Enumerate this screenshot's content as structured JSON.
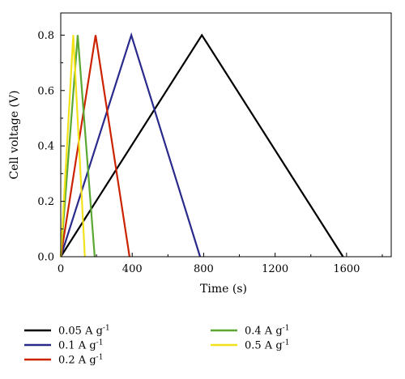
{
  "chart_data": {
    "type": "line",
    "xlabel": "Time (s)",
    "ylabel": "Cell voltage (V)",
    "xlim": [
      0,
      1850
    ],
    "ylim": [
      0,
      0.88
    ],
    "x_ticks": [
      0,
      400,
      800,
      1200,
      1600
    ],
    "y_ticks": [
      0.0,
      0.2,
      0.4,
      0.6,
      0.8
    ],
    "x_tick_labels": [
      "0",
      "400",
      "800",
      "1200",
      "1600"
    ],
    "y_tick_labels": [
      "0.0",
      "0.2",
      "0.4",
      "0.6",
      "0.8"
    ],
    "grid": false,
    "legend_position": "bottom",
    "series": [
      {
        "name": "0.05 A g",
        "sup": "-1",
        "color": "#000000",
        "x": [
          0,
          790,
          1580
        ],
        "y": [
          0.0,
          0.8,
          0.0
        ]
      },
      {
        "name": "0.1 A g",
        "sup": "-1",
        "color": "#2a2a8c",
        "x": [
          0,
          395,
          780
        ],
        "y": [
          0.0,
          0.8,
          0.0
        ]
      },
      {
        "name": "0.2 A g",
        "sup": "-1",
        "color": "#cc2200",
        "x": [
          0,
          195,
          385
        ],
        "y": [
          0.0,
          0.8,
          0.0
        ]
      },
      {
        "name": "0.4 A g",
        "sup": "-1",
        "color": "#5aa832",
        "x": [
          0,
          95,
          190
        ],
        "y": [
          0.0,
          0.8,
          0.0
        ]
      },
      {
        "name": "0.5 A g",
        "sup": "-1",
        "color": "#f2e21a",
        "x": [
          0,
          70,
          135
        ],
        "y": [
          0.0,
          0.8,
          0.0
        ]
      }
    ]
  }
}
